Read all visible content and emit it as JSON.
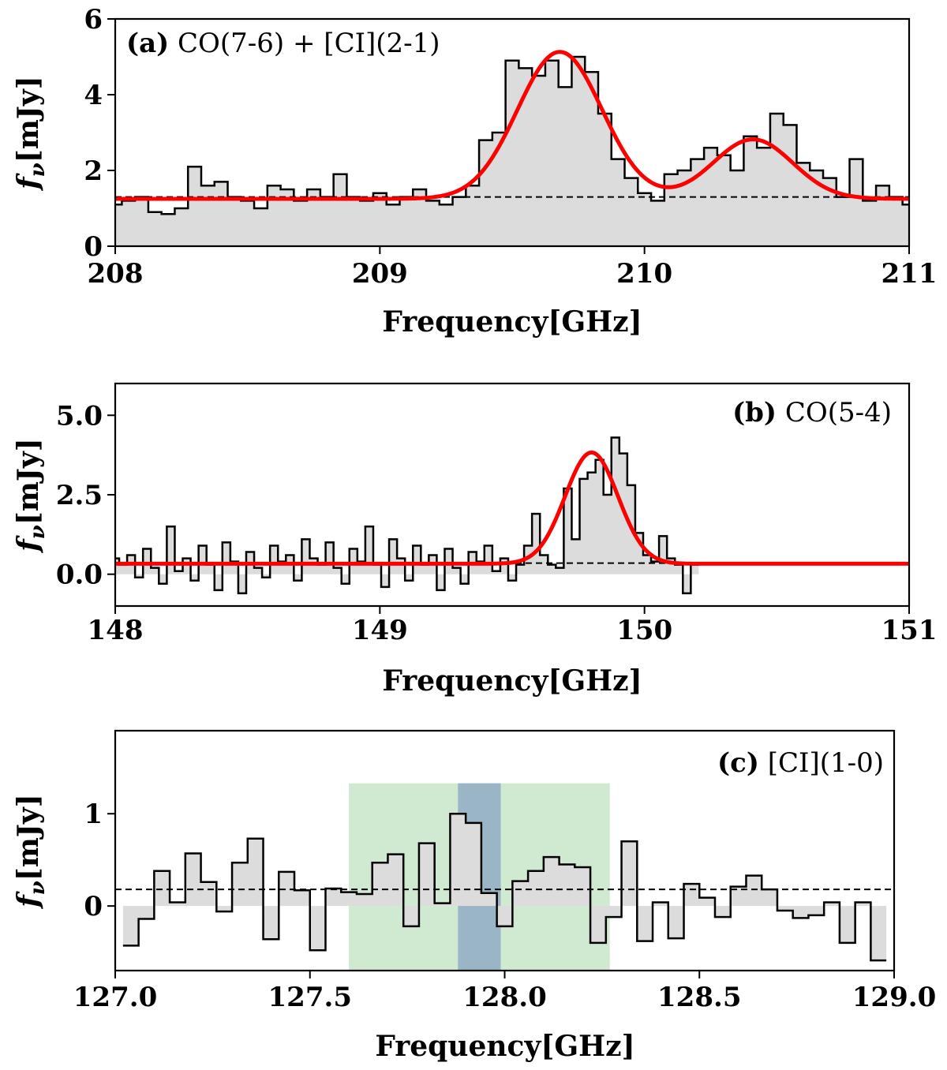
{
  "chart_data": [
    {
      "type": "step",
      "panel_label": "(a)",
      "title": "CO(7-6) + [CI](2-1)",
      "xlabel": "Frequency[GHz]",
      "ylabel_symbol": "f",
      "ylabel_subscript": "ν",
      "ylabel_unit": "[mJy]",
      "xlim": [
        208,
        211
      ],
      "ylim": [
        0,
        6
      ],
      "xticks": [
        208,
        209,
        210,
        211
      ],
      "xtick_labels": [
        "208",
        "209",
        "210",
        "211"
      ],
      "yticks": [
        0,
        2,
        4,
        6
      ],
      "ytick_labels": [
        "0",
        "2",
        "4",
        "6"
      ],
      "continuum": 1.3,
      "spectrum_x": [
        208.0,
        208.05,
        208.1,
        208.15,
        208.2,
        208.25,
        208.3,
        208.35,
        208.4,
        208.45,
        208.5,
        208.55,
        208.6,
        208.65,
        208.7,
        208.75,
        208.8,
        208.85,
        208.9,
        208.95,
        209.0,
        209.05,
        209.1,
        209.15,
        209.2,
        209.25,
        209.3,
        209.35,
        209.4,
        209.45,
        209.5,
        209.55,
        209.6,
        209.65,
        209.7,
        209.75,
        209.8,
        209.85,
        209.9,
        209.95,
        210.0,
        210.05,
        210.1,
        210.15,
        210.2,
        210.25,
        210.3,
        210.35,
        210.4,
        210.45,
        210.5,
        210.55,
        210.6,
        210.65,
        210.7,
        210.75,
        210.8,
        210.85,
        210.9,
        210.95,
        211.0
      ],
      "spectrum_y": [
        1.1,
        1.2,
        1.3,
        0.9,
        0.85,
        1.0,
        2.1,
        1.6,
        1.7,
        1.3,
        1.2,
        1.0,
        1.6,
        1.5,
        1.2,
        1.5,
        1.3,
        1.9,
        1.3,
        1.2,
        1.4,
        1.1,
        1.3,
        1.5,
        1.2,
        1.1,
        1.3,
        1.6,
        2.8,
        3.0,
        4.9,
        4.7,
        4.5,
        4.9,
        4.2,
        5.0,
        4.6,
        3.5,
        2.3,
        1.8,
        1.4,
        1.2,
        1.9,
        2.0,
        2.3,
        2.6,
        2.4,
        2.0,
        2.9,
        2.6,
        3.5,
        3.2,
        2.2,
        2.0,
        1.8,
        1.3,
        2.3,
        1.2,
        1.6,
        1.3,
        1.1
      ],
      "fit": {
        "continuum": 1.25,
        "gaussians": [
          {
            "center": 209.68,
            "amplitude": 3.88,
            "sigma": 0.16
          },
          {
            "center": 210.41,
            "amplitude": 1.57,
            "sigma": 0.15
          }
        ],
        "color": "#ff0000"
      }
    },
    {
      "type": "step",
      "panel_label": "(b)",
      "title": "CO(5-4)",
      "xlabel": "Frequency[GHz]",
      "ylabel_symbol": "f",
      "ylabel_subscript": "ν",
      "ylabel_unit": "[mJy]",
      "xlim": [
        148,
        151
      ],
      "ylim": [
        -1,
        6
      ],
      "xticks": [
        148,
        149,
        150,
        151
      ],
      "xtick_labels": [
        "148",
        "149",
        "150",
        "151"
      ],
      "yticks": [
        0,
        2.5,
        5
      ],
      "ytick_labels": [
        "0.0",
        "2.5",
        "5.0"
      ],
      "continuum": 0.35,
      "spectrum_x": [
        148.0,
        148.03,
        148.06,
        148.09,
        148.12,
        148.15,
        148.18,
        148.21,
        148.24,
        148.27,
        148.3,
        148.33,
        148.36,
        148.39,
        148.42,
        148.45,
        148.48,
        148.51,
        148.54,
        148.57,
        148.6,
        148.63,
        148.66,
        148.69,
        148.72,
        148.75,
        148.78,
        148.81,
        148.84,
        148.87,
        148.9,
        148.93,
        148.96,
        148.99,
        149.02,
        149.05,
        149.08,
        149.11,
        149.14,
        149.17,
        149.2,
        149.23,
        149.26,
        149.29,
        149.32,
        149.35,
        149.38,
        149.41,
        149.44,
        149.47,
        149.5,
        149.53,
        149.56,
        149.59,
        149.62,
        149.65,
        149.68,
        149.71,
        149.74,
        149.77,
        149.8,
        149.83,
        149.86,
        149.89,
        149.92,
        149.95,
        149.98,
        150.01,
        150.04,
        150.07,
        150.1,
        150.13,
        150.16,
        150.19
      ],
      "spectrum_y": [
        0.5,
        0.3,
        0.6,
        -0.1,
        0.8,
        0.2,
        -0.3,
        1.5,
        0.1,
        0.5,
        -0.2,
        0.9,
        0.3,
        -0.5,
        1.0,
        0.4,
        -0.6,
        0.7,
        0.2,
        -0.1,
        0.9,
        0.4,
        0.6,
        -0.2,
        1.1,
        0.5,
        0.3,
        1.0,
        0.2,
        -0.3,
        0.8,
        0.4,
        1.5,
        0.3,
        -0.4,
        1.1,
        0.5,
        -0.2,
        0.9,
        0.3,
        0.6,
        -0.5,
        0.8,
        0.2,
        -0.3,
        0.7,
        0.4,
        0.9,
        0.1,
        0.5,
        -0.2,
        0.3,
        0.9,
        1.9,
        0.6,
        0.3,
        0.2,
        2.7,
        1.1,
        3.0,
        3.2,
        3.6,
        2.5,
        4.3,
        3.8,
        2.8,
        1.3,
        0.6,
        0.4,
        1.2,
        0.5,
        0.3,
        -0.6,
        0.3
      ],
      "fit": {
        "continuum": 0.33,
        "gaussians": [
          {
            "center": 149.8,
            "amplitude": 3.5,
            "sigma": 0.1
          }
        ],
        "color": "#ff0000"
      }
    },
    {
      "type": "step",
      "panel_label": "(c)",
      "title": "[CI](1-0)",
      "xlabel": "Frequency[GHz]",
      "ylabel_symbol": "f",
      "ylabel_subscript": "ν",
      "ylabel_unit": "[mJy]",
      "xlim": [
        127.0,
        129.0
      ],
      "ylim": [
        -0.7,
        1.9
      ],
      "xticks": [
        127.0,
        127.5,
        128.0,
        128.5,
        129.0
      ],
      "xtick_labels": [
        "127.0",
        "127.5",
        "128.0",
        "128.5",
        "129.0"
      ],
      "yticks": [
        0,
        1
      ],
      "ytick_labels": [
        "0",
        "1"
      ],
      "continuum": 0.18,
      "green_band": {
        "x": [
          127.6,
          128.27
        ],
        "y_top": 1.33,
        "color": "#c8e6c9"
      },
      "blue_band": {
        "x": [
          127.88,
          127.99
        ],
        "y_top": 1.33,
        "color": "#9ab5c5"
      },
      "spectrum_x": [
        127.04,
        127.08,
        127.12,
        127.16,
        127.2,
        127.24,
        127.28,
        127.32,
        127.36,
        127.4,
        127.44,
        127.48,
        127.52,
        127.56,
        127.6,
        127.64,
        127.68,
        127.72,
        127.76,
        127.8,
        127.84,
        127.88,
        127.92,
        127.96,
        128.0,
        128.04,
        128.08,
        128.12,
        128.16,
        128.2,
        128.24,
        128.28,
        128.32,
        128.36,
        128.4,
        128.44,
        128.48,
        128.52,
        128.56,
        128.6,
        128.64,
        128.68,
        128.72,
        128.76,
        128.8,
        128.84,
        128.88,
        128.92,
        128.96
      ],
      "spectrum_y": [
        -0.43,
        -0.14,
        0.38,
        0.04,
        0.57,
        0.26,
        -0.06,
        0.47,
        0.73,
        -0.36,
        0.37,
        0.17,
        -0.48,
        0.19,
        0.15,
        0.13,
        0.47,
        0.56,
        -0.22,
        0.68,
        0.03,
        1.0,
        0.9,
        0.14,
        -0.22,
        0.27,
        0.38,
        0.53,
        0.45,
        0.42,
        -0.4,
        -0.12,
        0.7,
        -0.38,
        0.04,
        -0.35,
        0.24,
        0.09,
        -0.12,
        0.21,
        0.33,
        0.18,
        -0.05,
        -0.13,
        -0.1,
        0.04,
        -0.4,
        0.04,
        -0.59
      ]
    }
  ]
}
